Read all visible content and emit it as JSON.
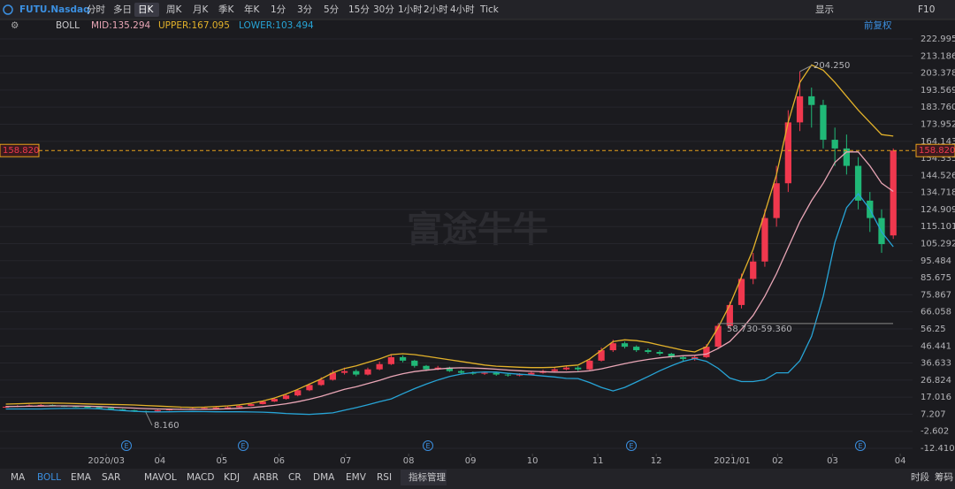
{
  "toolbar": {
    "symbol": "FUTU.Nasdaq",
    "periods": [
      "分时",
      "多日",
      "日K",
      "周K",
      "月K",
      "季K",
      "年K",
      "1分",
      "3分",
      "5分",
      "15分",
      "30分",
      "1小时",
      "2小时",
      "4小时",
      "Tick"
    ],
    "display": "显示",
    "f10": "F10"
  },
  "indicator_bar": {
    "name": "BOLL",
    "adjust": "前复权"
  },
  "bottom_bar": {
    "indicators": [
      "MA",
      "BOLL",
      "EMA",
      "SAR",
      "MAVOL",
      "MACD",
      "KDJ",
      "ARBR",
      "CR",
      "DMA",
      "EMV",
      "RSI",
      "指标管理"
    ],
    "right": [
      "时段",
      "筹码"
    ]
  },
  "watermark": "富途牛牛",
  "events": [
    "E",
    "E",
    "E",
    "E",
    "E"
  ],
  "chart_data": {
    "type": "candlestick",
    "categories": [
      null,
      null,
      null,
      null,
      null,
      null,
      null,
      null,
      null,
      null,
      null,
      null,
      null,
      null,
      null,
      null,
      null,
      null,
      null,
      null,
      null,
      null,
      null,
      null,
      null,
      null,
      null,
      null,
      null,
      null,
      null,
      null,
      null,
      null,
      null,
      null,
      null,
      null,
      null,
      null,
      null,
      null,
      null,
      null,
      null,
      null,
      null,
      null,
      null,
      null,
      null,
      null,
      null,
      null,
      null,
      null,
      null,
      null,
      null,
      null,
      null,
      null,
      null,
      null,
      null,
      null,
      null,
      null,
      null,
      null,
      null,
      null,
      null,
      null,
      null,
      null,
      null
    ],
    "open": [
      11.2,
      11.5,
      12,
      12.3,
      12.5,
      12,
      11.8,
      11.5,
      11.2,
      10.8,
      10,
      9.5,
      9,
      8.8,
      9.5,
      10,
      10.3,
      10.5,
      10.8,
      11,
      11.2,
      12,
      13,
      14.5,
      16,
      18,
      21,
      24,
      27,
      31,
      32,
      30,
      33,
      36,
      40,
      38,
      35,
      33,
      34,
      32,
      31,
      30.5,
      31,
      30,
      29.5,
      30,
      31,
      32,
      33,
      34,
      33,
      38,
      44,
      48,
      46,
      44,
      43,
      42,
      40,
      39,
      40,
      46,
      58,
      70,
      85,
      95,
      120,
      140,
      175,
      190,
      185,
      165,
      160,
      150,
      130,
      120,
      110
    ],
    "high": [
      12,
      12.4,
      12.8,
      13,
      12.8,
      12.3,
      12,
      11.8,
      11.5,
      11,
      10.3,
      9.8,
      9.3,
      9.8,
      10.4,
      10.7,
      10.9,
      11.2,
      11.5,
      11.7,
      12.4,
      13.5,
      15,
      16.6,
      18.8,
      21.8,
      25,
      28.5,
      32.5,
      34,
      33,
      34,
      37.5,
      41.5,
      41,
      38.5,
      35.5,
      35,
      34.5,
      32.8,
      31.8,
      31.8,
      31.5,
      30.6,
      30.8,
      31.8,
      32.8,
      34,
      35,
      34.8,
      39,
      45.5,
      50,
      49,
      46.8,
      45,
      44,
      42.5,
      40.8,
      41,
      47.5,
      59.36,
      72,
      88,
      100,
      125,
      150,
      182,
      204.25,
      195,
      188,
      172,
      168,
      155,
      135,
      125,
      160
    ],
    "low": [
      10.9,
      11.3,
      11.8,
      12,
      11.7,
      11.4,
      11.1,
      10.8,
      10.3,
      9.5,
      9,
      8.5,
      8.16,
      8.6,
      9.3,
      9.8,
      10,
      10.2,
      10.5,
      10.8,
      11,
      11.8,
      12.8,
      14.2,
      15.6,
      17.5,
      20.5,
      23.5,
      26.5,
      30,
      29,
      29.5,
      32.5,
      35.5,
      37,
      34,
      32,
      32.5,
      31.5,
      30.2,
      29.8,
      29.8,
      29.3,
      28.8,
      29,
      29.6,
      30.5,
      31.5,
      32.5,
      32,
      32.5,
      37.5,
      43,
      45,
      43,
      42,
      41,
      39,
      37.5,
      38,
      39.5,
      45,
      56,
      68,
      82,
      92,
      115,
      135,
      170,
      172,
      160,
      150,
      145,
      125,
      112,
      100,
      108
    ],
    "close": [
      11.5,
      12,
      12.3,
      12.5,
      12,
      11.8,
      11.5,
      11.2,
      10.8,
      10,
      9.5,
      9,
      8.8,
      9.5,
      10,
      10.3,
      10.5,
      10.8,
      11,
      11.2,
      12,
      13,
      14.5,
      16,
      18,
      21,
      24,
      27,
      31,
      32,
      30,
      33,
      36,
      40,
      38,
      35,
      33,
      34,
      32,
      31,
      30.5,
      31,
      30,
      29.5,
      30,
      31,
      32,
      33,
      34,
      33,
      38,
      44,
      48,
      46,
      44,
      43,
      42,
      40,
      39,
      40,
      46,
      58,
      70,
      85,
      95,
      120,
      140,
      175,
      190,
      185,
      165,
      160,
      150,
      130,
      120,
      105,
      158.82
    ],
    "up_color": "#f0384e",
    "down_color": "#20b877",
    "series": [
      {
        "name": "MID:135.294",
        "color": "#e9a6b6",
        "values": [
          11.6,
          11.7,
          11.8,
          11.9,
          12,
          12,
          11.9,
          11.8,
          11.6,
          11.3,
          11,
          10.7,
          10.4,
          10.2,
          10.1,
          10,
          10,
          10,
          10.1,
          10.3,
          10.6,
          11,
          11.6,
          12.3,
          13.2,
          14.4,
          15.8,
          17.5,
          19.5,
          21.5,
          23,
          24.8,
          26.7,
          28.8,
          30.5,
          31.7,
          32.5,
          33.2,
          33.7,
          33.9,
          33.8,
          33.5,
          33.1,
          32.6,
          32.2,
          31.9,
          31.6,
          31.4,
          31.4,
          31.6,
          32.2,
          33.3,
          34.8,
          36.3,
          37.6,
          38.7,
          39.6,
          40.3,
          40.8,
          41.1,
          41.8,
          45,
          49,
          56,
          64,
          75,
          88,
          103,
          118,
          130,
          140,
          152,
          158,
          158,
          150,
          140,
          135.294
        ]
      },
      {
        "name": "UPPER:167.095",
        "color": "#e2b12a",
        "values": [
          13,
          13.2,
          13.4,
          13.6,
          13.6,
          13.5,
          13.3,
          13.1,
          12.9,
          12.8,
          12.7,
          12.5,
          12.2,
          11.9,
          11.6,
          11.3,
          11.2,
          11.3,
          11.6,
          12,
          12.6,
          13.5,
          14.8,
          16.5,
          18.8,
          21.5,
          24.5,
          27.5,
          31,
          33.5,
          35,
          37,
          39,
          41.5,
          42,
          41.5,
          40.5,
          39.5,
          38.5,
          37.5,
          36.5,
          35.5,
          34.8,
          34.5,
          34.2,
          34,
          34,
          34.2,
          35,
          35.5,
          39,
          44,
          49,
          50,
          49.5,
          48.5,
          47,
          45.5,
          44,
          43,
          46,
          57,
          70,
          86,
          102,
          123,
          145,
          175,
          198,
          208,
          205,
          198,
          190,
          182,
          175,
          168,
          167.095
        ]
      },
      {
        "name": "LOWER:103.494",
        "color": "#27a4d6",
        "values": [
          10.2,
          10.2,
          10.2,
          10.2,
          10.4,
          10.5,
          10.5,
          10.5,
          10.3,
          9.8,
          9.3,
          8.9,
          8.6,
          8.5,
          8.6,
          8.7,
          8.8,
          8.7,
          8.6,
          8.6,
          8.6,
          8.5,
          8.4,
          8.1,
          7.6,
          7.3,
          7.1,
          7.5,
          8,
          9.5,
          11,
          12.6,
          14.4,
          16,
          19,
          21.9,
          24.5,
          26.9,
          28.9,
          30.3,
          31.1,
          31.5,
          31.4,
          30.7,
          30.2,
          29.8,
          29.2,
          28.6,
          27.8,
          27.7,
          25.4,
          22.6,
          20.6,
          22.6,
          25.7,
          28.9,
          32.2,
          35.1,
          37.6,
          39.2,
          37.6,
          33.6,
          28,
          26,
          26,
          27,
          31,
          31,
          38,
          52,
          75,
          106,
          126,
          134,
          125,
          112,
          103.494
        ]
      }
    ],
    "ylim": [
      -12.41,
      222.995
    ],
    "yticks": [
      {
        "value": -12.41,
        "label": "-12.410"
      },
      -2.602,
      7.207,
      17.016,
      26.824,
      36.633,
      46.441,
      56.25,
      66.058,
      75.867,
      85.675,
      95.484,
      105.292,
      115.101,
      124.909,
      134.718,
      144.526,
      154.335,
      164.143,
      173.952,
      {
        "value": 183.76,
        "label": "183.760"
      },
      193.569,
      203.378,
      213.186,
      222.995
    ],
    "xlim": [
      -0.5,
      77.5
    ],
    "xticks": [
      {
        "value": 8.6,
        "label": "2020/03"
      },
      {
        "value": 13.2,
        "label": "04"
      },
      {
        "value": 18.5,
        "label": "05"
      },
      {
        "value": 23.4,
        "label": "06"
      },
      {
        "value": 29.1,
        "label": "07"
      },
      {
        "value": 34.5,
        "label": "08"
      },
      {
        "value": 39.8,
        "label": "09"
      },
      {
        "value": 45.1,
        "label": "10"
      },
      {
        "value": 50.7,
        "label": "11"
      },
      {
        "value": 55.7,
        "label": "12"
      },
      {
        "value": 62.2,
        "label": "2021/01"
      },
      {
        "value": 66.1,
        "label": "02"
      },
      {
        "value": 70.8,
        "label": "03"
      },
      {
        "value": 76.6,
        "label": "04"
      }
    ],
    "last_price": {
      "value": 158.82,
      "label": "158.820"
    },
    "annotations": [
      "204.250",
      "8.160",
      "58.730-59.360"
    ],
    "grid": true
  }
}
